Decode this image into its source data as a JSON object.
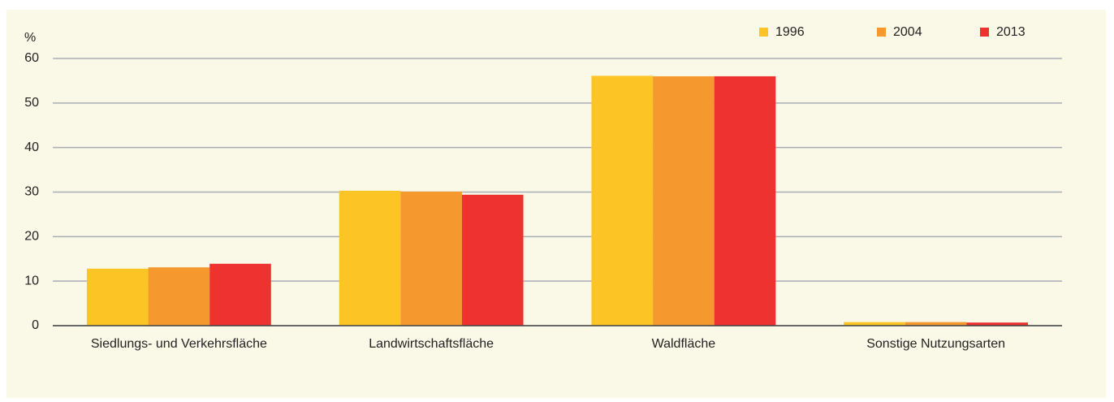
{
  "chart_data": {
    "type": "bar",
    "y_label": "%",
    "categories": [
      "Siedlungs- und Verkehrsfläche",
      "Landwirtschaftsfläche",
      "Waldfläche",
      "Sonstige Nutzungsarten"
    ],
    "series": [
      {
        "name": "1996",
        "color": "#fcc425",
        "values": [
          12.8,
          30.3,
          56.1,
          0.8
        ]
      },
      {
        "name": "2004",
        "color": "#f5982d",
        "values": [
          13.1,
          30.1,
          56.0,
          0.8
        ]
      },
      {
        "name": "2013",
        "color": "#ee3230",
        "values": [
          13.9,
          29.4,
          56.0,
          0.7
        ]
      }
    ],
    "ylim": [
      0,
      60
    ],
    "yticks": [
      0,
      10,
      20,
      30,
      40,
      50,
      60
    ],
    "grid": true,
    "legend": "top-right"
  }
}
